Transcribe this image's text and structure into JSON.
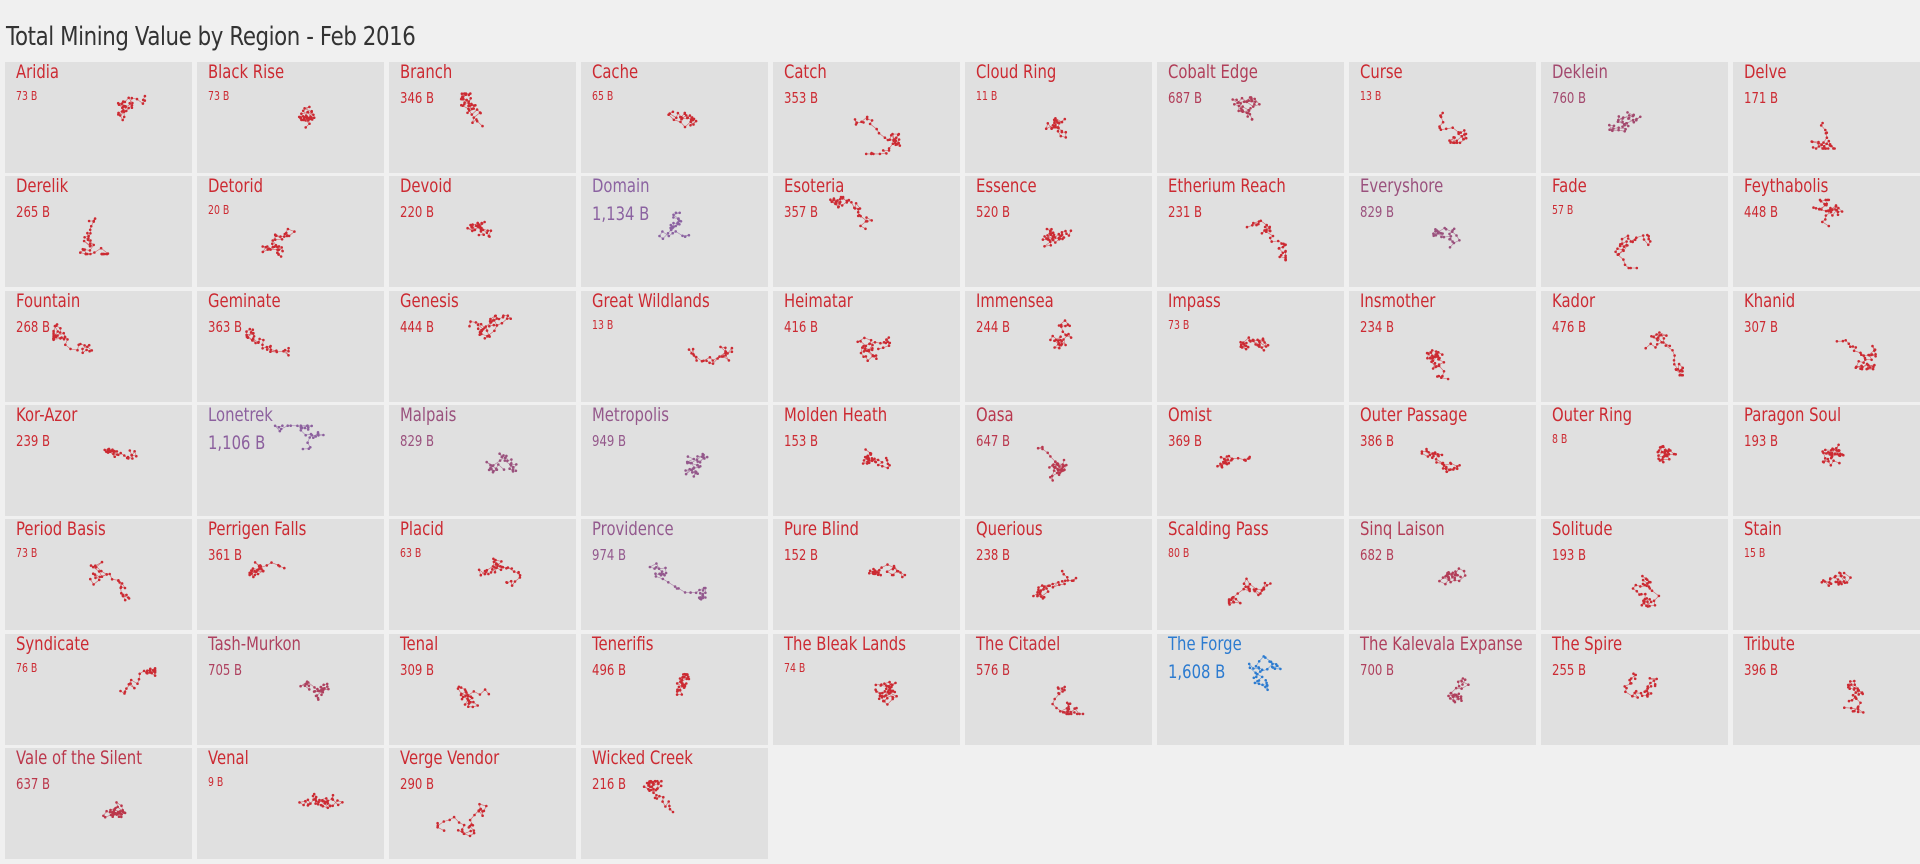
{
  "title": "Total Mining Value by Region - Feb 2016",
  "colors": {
    "low": "#cc2a32",
    "mid": "#9b4f7a",
    "high": "#8a63a3",
    "top": "#2c7bd0",
    "tile_bg": "#e0e0e0",
    "link": "#aaaaaa"
  },
  "chart_data": {
    "type": "small-multiples",
    "unit": "B",
    "columns": 10,
    "regions": [
      {
        "name": "Aridia",
        "value": 73,
        "label": "73 B"
      },
      {
        "name": "Black Rise",
        "value": 73,
        "label": "73 B"
      },
      {
        "name": "Branch",
        "value": 346,
        "label": "346 B"
      },
      {
        "name": "Cache",
        "value": 65,
        "label": "65 B"
      },
      {
        "name": "Catch",
        "value": 353,
        "label": "353 B"
      },
      {
        "name": "Cloud Ring",
        "value": 11,
        "label": "11 B"
      },
      {
        "name": "Cobalt Edge",
        "value": 687,
        "label": "687 B"
      },
      {
        "name": "Curse",
        "value": 13,
        "label": "13 B"
      },
      {
        "name": "Deklein",
        "value": 760,
        "label": "760 B"
      },
      {
        "name": "Delve",
        "value": 171,
        "label": "171 B"
      },
      {
        "name": "Derelik",
        "value": 265,
        "label": "265 B"
      },
      {
        "name": "Detorid",
        "value": 20,
        "label": "20 B"
      },
      {
        "name": "Devoid",
        "value": 220,
        "label": "220 B"
      },
      {
        "name": "Domain",
        "value": 1134,
        "label": "1,134 B"
      },
      {
        "name": "Esoteria",
        "value": 357,
        "label": "357 B"
      },
      {
        "name": "Essence",
        "value": 520,
        "label": "520 B"
      },
      {
        "name": "Etherium Reach",
        "value": 231,
        "label": "231 B"
      },
      {
        "name": "Everyshore",
        "value": 829,
        "label": "829 B"
      },
      {
        "name": "Fade",
        "value": 57,
        "label": "57 B"
      },
      {
        "name": "Feythabolis",
        "value": 448,
        "label": "448 B"
      },
      {
        "name": "Fountain",
        "value": 268,
        "label": "268 B"
      },
      {
        "name": "Geminate",
        "value": 363,
        "label": "363 B"
      },
      {
        "name": "Genesis",
        "value": 444,
        "label": "444 B"
      },
      {
        "name": "Great Wildlands",
        "value": 13,
        "label": "13 B"
      },
      {
        "name": "Heimatar",
        "value": 416,
        "label": "416 B"
      },
      {
        "name": "Immensea",
        "value": 244,
        "label": "244 B"
      },
      {
        "name": "Impass",
        "value": 73,
        "label": "73 B"
      },
      {
        "name": "Insmother",
        "value": 234,
        "label": "234 B"
      },
      {
        "name": "Kador",
        "value": 476,
        "label": "476 B"
      },
      {
        "name": "Khanid",
        "value": 307,
        "label": "307 B"
      },
      {
        "name": "Kor-Azor",
        "value": 239,
        "label": "239 B"
      },
      {
        "name": "Lonetrek",
        "value": 1106,
        "label": "1,106 B"
      },
      {
        "name": "Malpais",
        "value": 829,
        "label": "829 B"
      },
      {
        "name": "Metropolis",
        "value": 949,
        "label": "949 B"
      },
      {
        "name": "Molden Heath",
        "value": 153,
        "label": "153 B"
      },
      {
        "name": "Oasa",
        "value": 647,
        "label": "647 B"
      },
      {
        "name": "Omist",
        "value": 369,
        "label": "369 B"
      },
      {
        "name": "Outer Passage",
        "value": 386,
        "label": "386 B"
      },
      {
        "name": "Outer Ring",
        "value": 8,
        "label": "8 B"
      },
      {
        "name": "Paragon Soul",
        "value": 193,
        "label": "193 B"
      },
      {
        "name": "Period Basis",
        "value": 73,
        "label": "73 B"
      },
      {
        "name": "Perrigen Falls",
        "value": 361,
        "label": "361 B"
      },
      {
        "name": "Placid",
        "value": 63,
        "label": "63 B"
      },
      {
        "name": "Providence",
        "value": 974,
        "label": "974 B"
      },
      {
        "name": "Pure Blind",
        "value": 152,
        "label": "152 B"
      },
      {
        "name": "Querious",
        "value": 238,
        "label": "238 B"
      },
      {
        "name": "Scalding Pass",
        "value": 80,
        "label": "80 B"
      },
      {
        "name": "Sinq Laison",
        "value": 682,
        "label": "682 B"
      },
      {
        "name": "Solitude",
        "value": 193,
        "label": "193 B"
      },
      {
        "name": "Stain",
        "value": 15,
        "label": "15 B"
      },
      {
        "name": "Syndicate",
        "value": 76,
        "label": "76 B"
      },
      {
        "name": "Tash-Murkon",
        "value": 705,
        "label": "705 B"
      },
      {
        "name": "Tenal",
        "value": 309,
        "label": "309 B"
      },
      {
        "name": "Tenerifis",
        "value": 496,
        "label": "496 B"
      },
      {
        "name": "The Bleak Lands",
        "value": 74,
        "label": "74 B"
      },
      {
        "name": "The Citadel",
        "value": 576,
        "label": "576 B"
      },
      {
        "name": "The Forge",
        "value": 1608,
        "label": "1,608 B"
      },
      {
        "name": "The Kalevala Expanse",
        "value": 700,
        "label": "700 B"
      },
      {
        "name": "The Spire",
        "value": 255,
        "label": "255 B"
      },
      {
        "name": "Tribute",
        "value": 396,
        "label": "396 B"
      },
      {
        "name": "Vale of the Silent",
        "value": 637,
        "label": "637 B"
      },
      {
        "name": "Venal",
        "value": 9,
        "label": "9 B"
      },
      {
        "name": "Verge Vendor",
        "value": 290,
        "label": "290 B"
      },
      {
        "name": "Wicked Creek",
        "value": 216,
        "label": "216 B"
      }
    ]
  }
}
